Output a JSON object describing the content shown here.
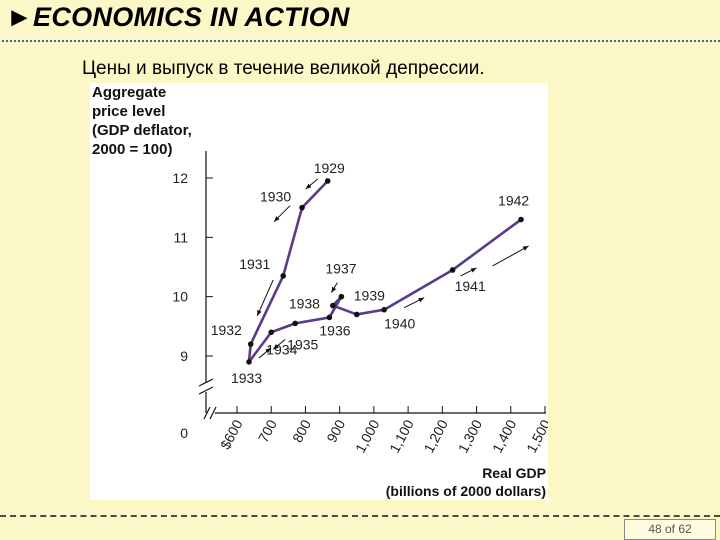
{
  "header": {
    "marker": "►",
    "title": "ECONOMICS IN ACTION"
  },
  "subtitle": "Цены и выпуск в течение великой депрессии.",
  "page_indicator": "48 of 62",
  "colors": {
    "background": "#fbf7c6",
    "series_line": "#5b3a8a",
    "title_rule": "#3d5f9e"
  },
  "chart_data": {
    "type": "line",
    "ylabel": [
      "Aggregate",
      "price level",
      "(GDP deflator,",
      "2000 = 100)"
    ],
    "xlabel": [
      "Real GDP",
      "(billions of 2000 dollars)"
    ],
    "xlim": [
      600,
      1500
    ],
    "ylim": [
      8.4,
      12.5
    ],
    "x_ticks": [
      "$600",
      "700",
      "800",
      "900",
      "1,000",
      "1,100",
      "1,200",
      "1,300",
      "1,400",
      "1,500"
    ],
    "y_ticks": [
      9,
      10,
      11,
      12
    ],
    "y_zero_label": "0",
    "axis_break": true,
    "series": [
      {
        "points": [
          {
            "year": "1929",
            "x": 865,
            "y": 11.95
          },
          {
            "year": "1930",
            "x": 790,
            "y": 11.5
          },
          {
            "year": "1931",
            "x": 735,
            "y": 10.35
          },
          {
            "year": "1932",
            "x": 640,
            "y": 9.2
          },
          {
            "year": "1933",
            "x": 635,
            "y": 8.9
          },
          {
            "year": "1934",
            "x": 700,
            "y": 9.4
          },
          {
            "year": "1935",
            "x": 770,
            "y": 9.55
          },
          {
            "year": "1936",
            "x": 870,
            "y": 9.65
          },
          {
            "year": "1937",
            "x": 905,
            "y": 10.0
          },
          {
            "year": "1938",
            "x": 880,
            "y": 9.85
          },
          {
            "year": "1939",
            "x": 950,
            "y": 9.7
          },
          {
            "year": "1940",
            "x": 1030,
            "y": 9.78
          },
          {
            "year": "1941",
            "x": 1230,
            "y": 10.45
          },
          {
            "year": "1942",
            "x": 1430,
            "y": 11.3
          }
        ]
      }
    ]
  }
}
